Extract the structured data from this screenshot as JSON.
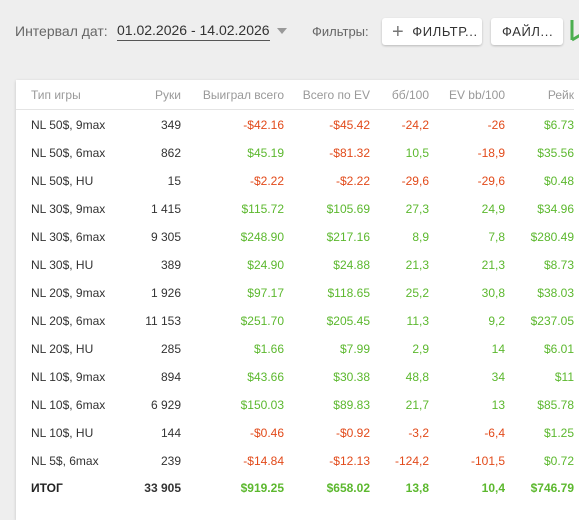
{
  "toolbar": {
    "date_label": "Интервал дат:",
    "date_value": "01.02.2026 - 14.02.2026",
    "filters_label": "Фильтры:",
    "filters_button": "ФИЛЬТР...",
    "files_button": "ФАЙЛ..."
  },
  "colors": {
    "positive": "#5cb82e",
    "negative": "#e24a1a",
    "brand_mark": "#4caf50"
  },
  "table": {
    "headers": [
      "Тип игры",
      "Руки",
      "Выиграл всего",
      "Всего по EV",
      "бб/100",
      "EV bb/100",
      "Рейк"
    ],
    "rows": [
      {
        "game": "NL 50$, 9max",
        "hands": "349",
        "won": "-$42.16",
        "ev": "-$45.42",
        "bb100": "-24,2",
        "evbb": "-26",
        "rake": "$6.73"
      },
      {
        "game": "NL 50$, 6max",
        "hands": "862",
        "won": "$45.19",
        "ev": "-$81.32",
        "bb100": "10,5",
        "evbb": "-18,9",
        "rake": "$35.56"
      },
      {
        "game": "NL 50$, HU",
        "hands": "15",
        "won": "-$2.22",
        "ev": "-$2.22",
        "bb100": "-29,6",
        "evbb": "-29,6",
        "rake": "$0.48"
      },
      {
        "game": "NL 30$, 9max",
        "hands": "1 415",
        "won": "$115.72",
        "ev": "$105.69",
        "bb100": "27,3",
        "evbb": "24,9",
        "rake": "$34.96"
      },
      {
        "game": "NL 30$, 6max",
        "hands": "9 305",
        "won": "$248.90",
        "ev": "$217.16",
        "bb100": "8,9",
        "evbb": "7,8",
        "rake": "$280.49"
      },
      {
        "game": "NL 30$, HU",
        "hands": "389",
        "won": "$24.90",
        "ev": "$24.88",
        "bb100": "21,3",
        "evbb": "21,3",
        "rake": "$8.73"
      },
      {
        "game": "NL 20$, 9max",
        "hands": "1 926",
        "won": "$97.17",
        "ev": "$118.65",
        "bb100": "25,2",
        "evbb": "30,8",
        "rake": "$38.03"
      },
      {
        "game": "NL 20$, 6max",
        "hands": "11 153",
        "won": "$251.70",
        "ev": "$205.45",
        "bb100": "11,3",
        "evbb": "9,2",
        "rake": "$237.05"
      },
      {
        "game": "NL 20$, HU",
        "hands": "285",
        "won": "$1.66",
        "ev": "$7.99",
        "bb100": "2,9",
        "evbb": "14",
        "rake": "$6.01"
      },
      {
        "game": "NL 10$, 9max",
        "hands": "894",
        "won": "$43.66",
        "ev": "$30.38",
        "bb100": "48,8",
        "evbb": "34",
        "rake": "$11"
      },
      {
        "game": "NL 10$, 6max",
        "hands": "6 929",
        "won": "$150.03",
        "ev": "$89.83",
        "bb100": "21,7",
        "evbb": "13",
        "rake": "$85.78"
      },
      {
        "game": "NL 10$, HU",
        "hands": "144",
        "won": "-$0.46",
        "ev": "-$0.92",
        "bb100": "-3,2",
        "evbb": "-6,4",
        "rake": "$1.25"
      },
      {
        "game": "NL 5$, 6max",
        "hands": "239",
        "won": "-$14.84",
        "ev": "-$12.13",
        "bb100": "-124,2",
        "evbb": "-101,5",
        "rake": "$0.72"
      }
    ],
    "total": {
      "game": "ИТОГ",
      "hands": "33 905",
      "won": "$919.25",
      "ev": "$658.02",
      "bb100": "13,8",
      "evbb": "10,4",
      "rake": "$746.79"
    }
  }
}
